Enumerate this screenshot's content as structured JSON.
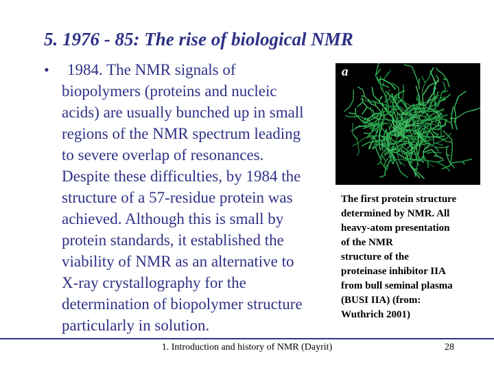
{
  "slide": {
    "title": "5. 1976 - 85: The rise of biological NMR",
    "bullet_char": "•",
    "body": "1984. The NMR signals of\nbiopolymers (proteins and nucleic\nacids) are usually bunched up in small\nregions of the NMR spectrum leading\nto severe overlap of resonances.\nDespite these difficulties, by 1984 the\nstructure of a 57-residue protein was\nachieved. Although this is small by\nprotein standards, it established the\nviability of NMR as an alternative to\nX-ray crystallography for the\ndetermination of biopolymer structure\nparticularly in solution.",
    "figure": {
      "panel_label": "a"
    },
    "caption": "The first protein structure\ndetermined by NMR. All\nheavy-atom presentation\nof the NMR\nstructure of the\nproteinase inhibitor IIA\nfrom bull seminal plasma\n(BUSI IIA) (from:\nWuthrich 2001)",
    "footer": {
      "text": "1. Introduction and history of NMR (Dayrit)",
      "page_number": "28"
    }
  },
  "colors": {
    "accent_navy": "#2e3186",
    "figure_background": "#000000",
    "molecule_green": "#2ca74f",
    "panel_label_color": "#ffffff",
    "text_black": "#000000"
  }
}
